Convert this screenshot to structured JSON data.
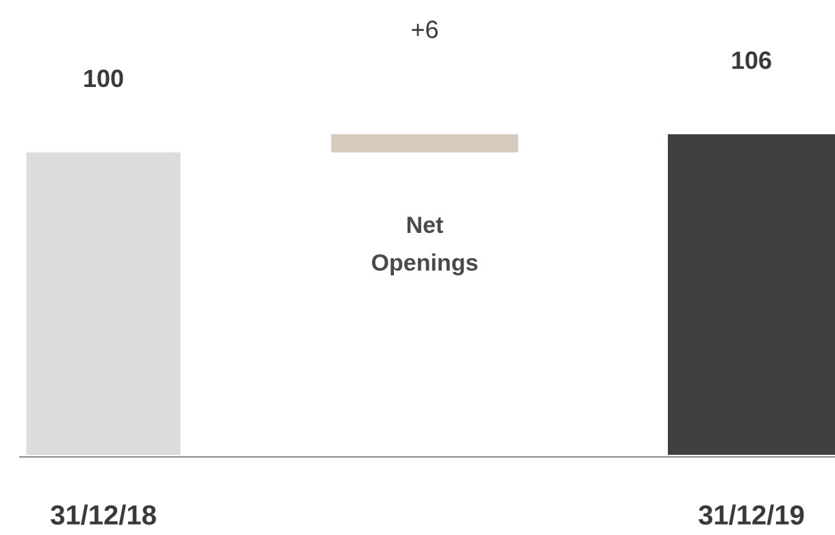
{
  "chart_data": {
    "type": "waterfall",
    "categories": [
      "31/12/18",
      "Net Openings",
      "31/12/19"
    ],
    "values": [
      100,
      6,
      106
    ],
    "value_labels": [
      "100",
      "+6",
      "106"
    ],
    "measure": [
      "absolute",
      "relative",
      "total"
    ],
    "colors": [
      "#dcdcdc",
      "#d6cbbd",
      "#404040"
    ]
  }
}
